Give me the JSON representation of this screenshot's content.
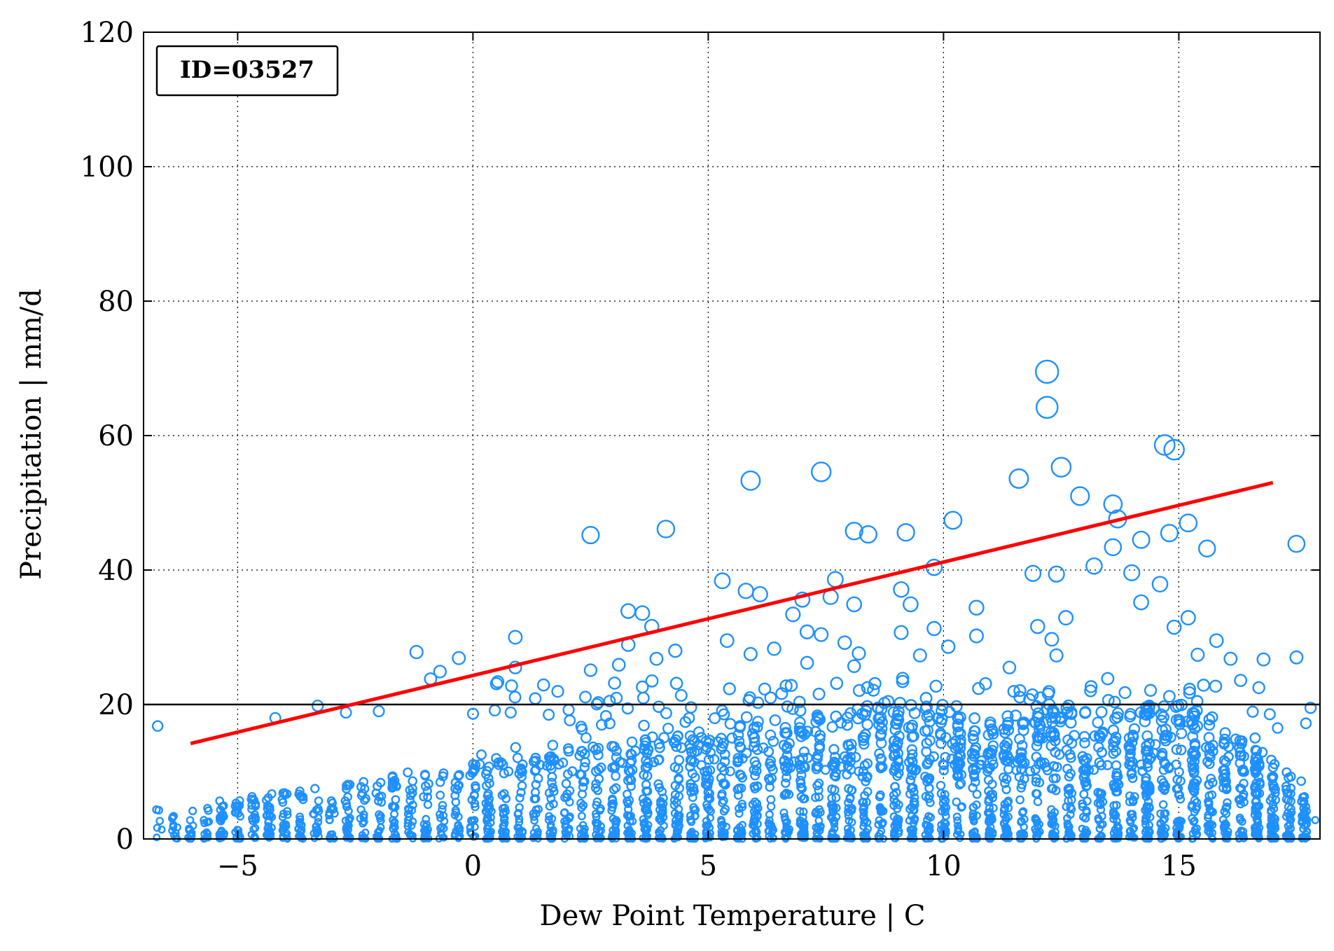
{
  "chart_data": {
    "type": "scatter",
    "annotation": "ID=03527",
    "xlabel": "Dew Point Temperature | C",
    "ylabel": "Precipitation | mm/d",
    "xlim": [
      -7,
      18
    ],
    "ylim": [
      0,
      120
    ],
    "xticks": [
      -5,
      0,
      5,
      10,
      15
    ],
    "xtick_labels": [
      "−5",
      "0",
      "5",
      "10",
      "15"
    ],
    "yticks": [
      0,
      20,
      40,
      60,
      80,
      100,
      120
    ],
    "ytick_labels": [
      "0",
      "20",
      "40",
      "60",
      "80",
      "100",
      "120"
    ],
    "grid": true,
    "grid_style": "dotted",
    "reference_line_y": 20,
    "marker": "open-circle",
    "marker_size_scales_with_value": true,
    "colors": {
      "points": "#1E90FF",
      "fit_line": "#FF0000",
      "axes": "#000000",
      "reference_line": "#000000"
    },
    "fit_line": {
      "x": [
        -6,
        17
      ],
      "y": [
        14.2,
        53.0
      ]
    },
    "notable_points": [
      {
        "x": 12.2,
        "y": 69.5
      },
      {
        "x": 12.2,
        "y": 64.2
      },
      {
        "x": 14.7,
        "y": 58.6
      },
      {
        "x": 14.9,
        "y": 57.9
      },
      {
        "x": 12.5,
        "y": 55.3
      },
      {
        "x": 7.4,
        "y": 54.6
      },
      {
        "x": 11.6,
        "y": 53.6
      },
      {
        "x": 5.9,
        "y": 53.3
      },
      {
        "x": 12.9,
        "y": 51.0
      },
      {
        "x": 13.6,
        "y": 49.8
      },
      {
        "x": 13.7,
        "y": 47.6
      },
      {
        "x": 10.2,
        "y": 47.4
      },
      {
        "x": 15.2,
        "y": 47.0
      },
      {
        "x": 4.1,
        "y": 46.1
      },
      {
        "x": 8.1,
        "y": 45.8
      },
      {
        "x": 9.2,
        "y": 45.6
      },
      {
        "x": 14.8,
        "y": 45.5
      },
      {
        "x": 8.4,
        "y": 45.3
      },
      {
        "x": 2.5,
        "y": 45.2
      },
      {
        "x": 17.5,
        "y": 43.9
      },
      {
        "x": 15.6,
        "y": 43.2
      },
      {
        "x": 13.6,
        "y": 43.4
      },
      {
        "x": 14.2,
        "y": 44.5
      },
      {
        "x": 9.8,
        "y": 40.4
      },
      {
        "x": 13.2,
        "y": 40.6
      },
      {
        "x": 11.9,
        "y": 39.5
      },
      {
        "x": 12.4,
        "y": 39.4
      },
      {
        "x": 14.0,
        "y": 39.6
      },
      {
        "x": 7.7,
        "y": 38.6
      },
      {
        "x": 5.3,
        "y": 38.4
      },
      {
        "x": 14.6,
        "y": 37.9
      },
      {
        "x": 9.1,
        "y": 37.1
      },
      {
        "x": 5.8,
        "y": 36.9
      },
      {
        "x": 6.1,
        "y": 36.4
      },
      {
        "x": 7.6,
        "y": 36.0
      },
      {
        "x": 7.0,
        "y": 35.6
      },
      {
        "x": 14.2,
        "y": 35.2
      },
      {
        "x": 9.3,
        "y": 34.9
      },
      {
        "x": 8.1,
        "y": 34.9
      },
      {
        "x": 10.7,
        "y": 34.4
      },
      {
        "x": 3.3,
        "y": 33.9
      },
      {
        "x": 3.6,
        "y": 33.6
      },
      {
        "x": 6.8,
        "y": 33.4
      },
      {
        "x": 15.2,
        "y": 32.9
      },
      {
        "x": 12.6,
        "y": 32.9
      },
      {
        "x": 3.8,
        "y": 31.6
      },
      {
        "x": 9.8,
        "y": 31.3
      },
      {
        "x": 12.0,
        "y": 31.6
      },
      {
        "x": 7.1,
        "y": 30.8
      },
      {
        "x": 9.1,
        "y": 30.7
      },
      {
        "x": 14.9,
        "y": 31.5
      },
      {
        "x": 7.4,
        "y": 30.4
      },
      {
        "x": 0.9,
        "y": 30.0
      },
      {
        "x": 10.7,
        "y": 30.2
      },
      {
        "x": 5.4,
        "y": 29.5
      },
      {
        "x": 7.9,
        "y": 29.2
      },
      {
        "x": 12.3,
        "y": 29.7
      },
      {
        "x": 15.8,
        "y": 29.5
      },
      {
        "x": 3.3,
        "y": 28.9
      },
      {
        "x": 10.1,
        "y": 28.6
      },
      {
        "x": 6.4,
        "y": 28.3
      },
      {
        "x": 4.3,
        "y": 28.0
      },
      {
        "x": -1.2,
        "y": 27.8
      },
      {
        "x": 5.9,
        "y": 27.5
      },
      {
        "x": 8.2,
        "y": 27.6
      },
      {
        "x": 9.5,
        "y": 27.3
      },
      {
        "x": 12.4,
        "y": 27.3
      },
      {
        "x": 15.4,
        "y": 27.4
      },
      {
        "x": -0.3,
        "y": 26.9
      },
      {
        "x": 3.9,
        "y": 26.8
      },
      {
        "x": 16.8,
        "y": 26.7
      },
      {
        "x": 17.5,
        "y": 27.0
      },
      {
        "x": 7.1,
        "y": 26.2
      },
      {
        "x": 3.1,
        "y": 25.9
      },
      {
        "x": 16.1,
        "y": 26.8
      },
      {
        "x": 0.9,
        "y": 25.5
      },
      {
        "x": -0.7,
        "y": 24.9
      },
      {
        "x": 2.5,
        "y": 25.1
      },
      {
        "x": 8.1,
        "y": 25.7
      },
      {
        "x": 11.4,
        "y": 25.5
      },
      {
        "x": -0.9,
        "y": 23.8
      },
      {
        "x": 0.5,
        "y": 23.1
      },
      {
        "x": 3.6,
        "y": 22.6
      },
      {
        "x": 6.2,
        "y": 22.3
      },
      {
        "x": 14.4,
        "y": 22.1
      },
      {
        "x": 1.5,
        "y": 22.9
      },
      {
        "x": 16.7,
        "y": 22.5
      },
      {
        "x": -3.3,
        "y": 19.8
      },
      {
        "x": -2.7,
        "y": 18.8
      },
      {
        "x": -2.0,
        "y": 19.0
      },
      {
        "x": -4.2,
        "y": 18.0
      },
      {
        "x": -6.7,
        "y": 16.8
      },
      {
        "x": 17.8,
        "y": 19.5
      },
      {
        "x": 17.7,
        "y": 17.2
      },
      {
        "x": 17.1,
        "y": 16.5
      },
      {
        "x": 17.6,
        "y": 8.6
      },
      {
        "x": 17.7,
        "y": 4.8
      },
      {
        "x": 17.9,
        "y": 2.8
      }
    ],
    "bulk_cloud_note": "thousands of small open circles fill 0-20 mm/d across the full dew point range, densest between 5 and 15 C"
  }
}
